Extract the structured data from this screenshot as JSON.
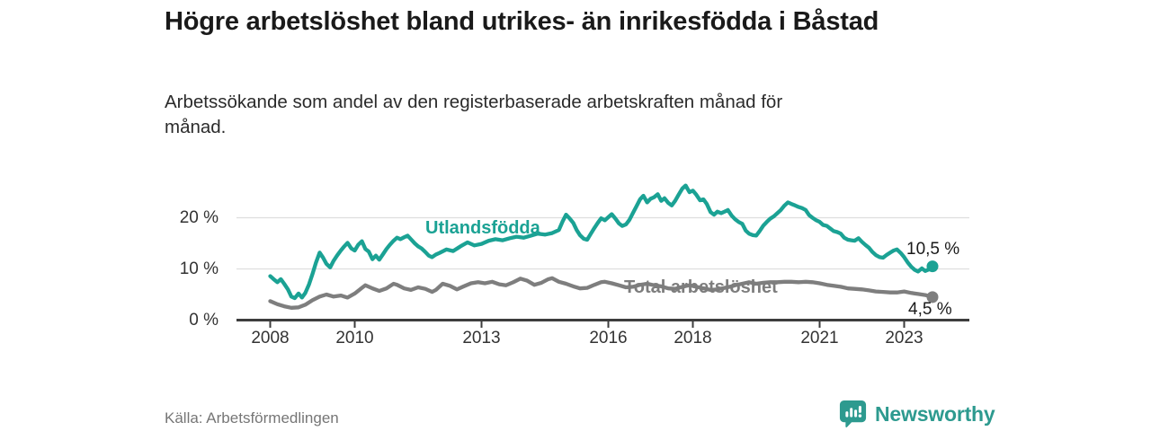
{
  "header": {
    "title": "Högre arbetslöshet bland utrikes- än inrikesfödda i Båstad",
    "subtitle": "Arbetssökande som andel av den registerbaserade arbetskraften månad för månad."
  },
  "footer": {
    "source": "Källa: Arbetsförmedlingen",
    "brand": "Newsworthy"
  },
  "colors": {
    "accent_teal": "#1ba294",
    "series_gray": "#7e7e7e",
    "gridline": "#dedede",
    "axis": "#3d3d3d",
    "title_text": "#1a1a1a",
    "tick_text": "#333333",
    "source_text": "#767676",
    "brand_teal": "#2d9a8f"
  },
  "chart_data": {
    "type": "line",
    "title": "Högre arbetslöshet bland utrikes- än inrikesfödda i Båstad",
    "subtitle": "Arbetssökande som andel av den registerbaserade arbetskraften månad för månad.",
    "unit": "%",
    "xlabel": "",
    "ylabel": "",
    "xlim": [
      2007.2,
      2024.5
    ],
    "ylim": [
      0,
      28.5
    ],
    "grid": "horizontal",
    "legend_position": "inline-labels",
    "x_ticks": [
      {
        "value": 2008,
        "label": "2008"
      },
      {
        "value": 2010,
        "label": "2010"
      },
      {
        "value": 2013,
        "label": "2013"
      },
      {
        "value": 2016,
        "label": "2016"
      },
      {
        "value": 2018,
        "label": "2018"
      },
      {
        "value": 2021,
        "label": "2021"
      },
      {
        "value": 2023,
        "label": "2023"
      }
    ],
    "y_ticks": [
      {
        "value": 0,
        "label": "0 %"
      },
      {
        "value": 10,
        "label": "10 %"
      },
      {
        "value": 20,
        "label": "20 %"
      }
    ],
    "series": [
      {
        "name": "Utlandsfödda",
        "color": "#1ba294",
        "end_value": 10.5,
        "end_value_label": "10,5 %",
        "points": [
          [
            2008.0,
            8.6
          ],
          [
            2008.08,
            8.0
          ],
          [
            2008.17,
            7.4
          ],
          [
            2008.25,
            8.0
          ],
          [
            2008.33,
            7.1
          ],
          [
            2008.42,
            6.0
          ],
          [
            2008.5,
            4.6
          ],
          [
            2008.58,
            4.3
          ],
          [
            2008.67,
            5.2
          ],
          [
            2008.75,
            4.4
          ],
          [
            2008.83,
            5.3
          ],
          [
            2008.92,
            7.0
          ],
          [
            2009.0,
            9.0
          ],
          [
            2009.08,
            11.2
          ],
          [
            2009.17,
            13.2
          ],
          [
            2009.25,
            12.2
          ],
          [
            2009.33,
            11.0
          ],
          [
            2009.42,
            10.3
          ],
          [
            2009.5,
            11.6
          ],
          [
            2009.58,
            12.6
          ],
          [
            2009.67,
            13.6
          ],
          [
            2009.75,
            14.4
          ],
          [
            2009.83,
            15.1
          ],
          [
            2009.92,
            14.0
          ],
          [
            2010.0,
            13.6
          ],
          [
            2010.08,
            14.7
          ],
          [
            2010.17,
            15.4
          ],
          [
            2010.25,
            13.9
          ],
          [
            2010.33,
            13.4
          ],
          [
            2010.42,
            11.9
          ],
          [
            2010.5,
            12.6
          ],
          [
            2010.58,
            11.8
          ],
          [
            2010.67,
            12.9
          ],
          [
            2010.75,
            13.9
          ],
          [
            2010.83,
            14.7
          ],
          [
            2010.92,
            15.5
          ],
          [
            2011.0,
            16.1
          ],
          [
            2011.08,
            15.8
          ],
          [
            2011.17,
            16.2
          ],
          [
            2011.25,
            16.5
          ],
          [
            2011.33,
            15.8
          ],
          [
            2011.42,
            15.0
          ],
          [
            2011.5,
            14.4
          ],
          [
            2011.58,
            14.0
          ],
          [
            2011.67,
            13.3
          ],
          [
            2011.75,
            12.6
          ],
          [
            2011.83,
            12.3
          ],
          [
            2011.92,
            12.8
          ],
          [
            2012.0,
            13.1
          ],
          [
            2012.17,
            13.8
          ],
          [
            2012.33,
            13.5
          ],
          [
            2012.5,
            14.4
          ],
          [
            2012.67,
            15.2
          ],
          [
            2012.83,
            14.6
          ],
          [
            2013.0,
            14.9
          ],
          [
            2013.17,
            15.5
          ],
          [
            2013.33,
            15.8
          ],
          [
            2013.5,
            15.6
          ],
          [
            2013.67,
            16.0
          ],
          [
            2013.83,
            16.3
          ],
          [
            2014.0,
            16.1
          ],
          [
            2014.17,
            16.5
          ],
          [
            2014.33,
            16.9
          ],
          [
            2014.5,
            16.7
          ],
          [
            2014.67,
            17.0
          ],
          [
            2014.83,
            17.6
          ],
          [
            2014.92,
            19.3
          ],
          [
            2015.0,
            20.6
          ],
          [
            2015.08,
            19.9
          ],
          [
            2015.17,
            19.0
          ],
          [
            2015.25,
            17.6
          ],
          [
            2015.33,
            16.6
          ],
          [
            2015.42,
            15.9
          ],
          [
            2015.5,
            15.7
          ],
          [
            2015.58,
            16.8
          ],
          [
            2015.67,
            18.0
          ],
          [
            2015.75,
            19.0
          ],
          [
            2015.83,
            19.9
          ],
          [
            2015.92,
            19.5
          ],
          [
            2016.0,
            20.1
          ],
          [
            2016.08,
            20.7
          ],
          [
            2016.17,
            19.8
          ],
          [
            2016.25,
            18.9
          ],
          [
            2016.33,
            18.4
          ],
          [
            2016.42,
            18.7
          ],
          [
            2016.5,
            19.6
          ],
          [
            2016.58,
            20.9
          ],
          [
            2016.67,
            22.3
          ],
          [
            2016.75,
            23.6
          ],
          [
            2016.83,
            24.3
          ],
          [
            2016.92,
            23.0
          ],
          [
            2017.0,
            23.7
          ],
          [
            2017.08,
            24.0
          ],
          [
            2017.17,
            24.6
          ],
          [
            2017.25,
            23.3
          ],
          [
            2017.33,
            23.8
          ],
          [
            2017.42,
            22.9
          ],
          [
            2017.5,
            22.4
          ],
          [
            2017.58,
            23.3
          ],
          [
            2017.67,
            24.6
          ],
          [
            2017.75,
            25.7
          ],
          [
            2017.83,
            26.3
          ],
          [
            2017.92,
            25.0
          ],
          [
            2018.0,
            25.3
          ],
          [
            2018.08,
            24.5
          ],
          [
            2018.17,
            23.4
          ],
          [
            2018.25,
            23.6
          ],
          [
            2018.33,
            22.7
          ],
          [
            2018.42,
            21.1
          ],
          [
            2018.5,
            20.6
          ],
          [
            2018.58,
            21.2
          ],
          [
            2018.67,
            20.9
          ],
          [
            2018.75,
            21.2
          ],
          [
            2018.83,
            21.5
          ],
          [
            2018.92,
            20.4
          ],
          [
            2019.0,
            19.7
          ],
          [
            2019.08,
            19.2
          ],
          [
            2019.17,
            18.8
          ],
          [
            2019.25,
            17.5
          ],
          [
            2019.33,
            16.9
          ],
          [
            2019.42,
            16.6
          ],
          [
            2019.5,
            16.5
          ],
          [
            2019.58,
            17.4
          ],
          [
            2019.67,
            18.5
          ],
          [
            2019.75,
            19.2
          ],
          [
            2019.83,
            19.8
          ],
          [
            2019.92,
            20.3
          ],
          [
            2020.0,
            20.9
          ],
          [
            2020.08,
            21.5
          ],
          [
            2020.17,
            22.4
          ],
          [
            2020.25,
            23.0
          ],
          [
            2020.33,
            22.7
          ],
          [
            2020.42,
            22.4
          ],
          [
            2020.5,
            22.1
          ],
          [
            2020.58,
            21.9
          ],
          [
            2020.67,
            21.5
          ],
          [
            2020.75,
            20.5
          ],
          [
            2020.83,
            20.0
          ],
          [
            2020.92,
            19.5
          ],
          [
            2021.0,
            19.2
          ],
          [
            2021.08,
            18.6
          ],
          [
            2021.17,
            18.4
          ],
          [
            2021.25,
            17.9
          ],
          [
            2021.33,
            17.4
          ],
          [
            2021.42,
            17.2
          ],
          [
            2021.5,
            16.9
          ],
          [
            2021.58,
            16.1
          ],
          [
            2021.67,
            15.7
          ],
          [
            2021.75,
            15.6
          ],
          [
            2021.83,
            15.5
          ],
          [
            2021.92,
            16.0
          ],
          [
            2022.0,
            15.3
          ],
          [
            2022.08,
            14.7
          ],
          [
            2022.17,
            14.1
          ],
          [
            2022.25,
            13.3
          ],
          [
            2022.33,
            12.7
          ],
          [
            2022.42,
            12.3
          ],
          [
            2022.5,
            12.2
          ],
          [
            2022.58,
            12.7
          ],
          [
            2022.67,
            13.2
          ],
          [
            2022.75,
            13.6
          ],
          [
            2022.83,
            13.8
          ],
          [
            2022.92,
            13.1
          ],
          [
            2023.0,
            12.3
          ],
          [
            2023.08,
            11.3
          ],
          [
            2023.17,
            10.4
          ],
          [
            2023.25,
            9.8
          ],
          [
            2023.33,
            9.5
          ],
          [
            2023.42,
            10.1
          ],
          [
            2023.5,
            9.6
          ],
          [
            2023.58,
            9.9
          ],
          [
            2023.67,
            10.5
          ]
        ]
      },
      {
        "name": "Total arbetslöshet",
        "color": "#7e7e7e",
        "end_value": 4.5,
        "end_value_label": "4,5 %",
        "points": [
          [
            2008.0,
            3.7
          ],
          [
            2008.17,
            3.1
          ],
          [
            2008.33,
            2.7
          ],
          [
            2008.5,
            2.4
          ],
          [
            2008.67,
            2.5
          ],
          [
            2008.83,
            3.0
          ],
          [
            2009.0,
            3.9
          ],
          [
            2009.17,
            4.6
          ],
          [
            2009.33,
            5.0
          ],
          [
            2009.5,
            4.6
          ],
          [
            2009.67,
            4.8
          ],
          [
            2009.83,
            4.4
          ],
          [
            2010.0,
            5.2
          ],
          [
            2010.17,
            6.3
          ],
          [
            2010.25,
            6.8
          ],
          [
            2010.42,
            6.2
          ],
          [
            2010.58,
            5.7
          ],
          [
            2010.75,
            6.2
          ],
          [
            2010.92,
            7.1
          ],
          [
            2011.0,
            6.9
          ],
          [
            2011.17,
            6.2
          ],
          [
            2011.33,
            5.9
          ],
          [
            2011.5,
            6.4
          ],
          [
            2011.67,
            6.1
          ],
          [
            2011.83,
            5.5
          ],
          [
            2011.92,
            5.9
          ],
          [
            2012.0,
            6.5
          ],
          [
            2012.08,
            7.1
          ],
          [
            2012.25,
            6.7
          ],
          [
            2012.42,
            6.0
          ],
          [
            2012.58,
            6.6
          ],
          [
            2012.75,
            7.2
          ],
          [
            2012.92,
            7.4
          ],
          [
            2013.08,
            7.2
          ],
          [
            2013.25,
            7.5
          ],
          [
            2013.42,
            7.0
          ],
          [
            2013.58,
            6.8
          ],
          [
            2013.75,
            7.4
          ],
          [
            2013.92,
            8.1
          ],
          [
            2014.08,
            7.7
          ],
          [
            2014.25,
            6.9
          ],
          [
            2014.42,
            7.3
          ],
          [
            2014.58,
            8.0
          ],
          [
            2014.67,
            8.2
          ],
          [
            2014.83,
            7.5
          ],
          [
            2015.0,
            7.1
          ],
          [
            2015.17,
            6.6
          ],
          [
            2015.33,
            6.2
          ],
          [
            2015.5,
            6.3
          ],
          [
            2015.67,
            6.9
          ],
          [
            2015.83,
            7.4
          ],
          [
            2015.92,
            7.5
          ],
          [
            2016.08,
            7.2
          ],
          [
            2016.25,
            6.8
          ],
          [
            2016.42,
            6.4
          ],
          [
            2016.58,
            6.5
          ],
          [
            2016.75,
            6.9
          ],
          [
            2016.92,
            7.1
          ],
          [
            2017.08,
            6.8
          ],
          [
            2017.25,
            6.6
          ],
          [
            2017.42,
            6.2
          ],
          [
            2017.58,
            6.1
          ],
          [
            2017.75,
            6.5
          ],
          [
            2017.92,
            6.8
          ],
          [
            2018.08,
            6.5
          ],
          [
            2018.25,
            6.2
          ],
          [
            2018.42,
            5.9
          ],
          [
            2018.58,
            6.0
          ],
          [
            2018.75,
            6.3
          ],
          [
            2018.92,
            6.6
          ],
          [
            2019.0,
            6.8
          ],
          [
            2019.17,
            7.1
          ],
          [
            2019.33,
            7.4
          ],
          [
            2019.5,
            7.1
          ],
          [
            2019.67,
            7.3
          ],
          [
            2019.83,
            7.4
          ],
          [
            2020.0,
            7.4
          ],
          [
            2020.17,
            7.5
          ],
          [
            2020.33,
            7.5
          ],
          [
            2020.5,
            7.4
          ],
          [
            2020.67,
            7.5
          ],
          [
            2020.83,
            7.4
          ],
          [
            2021.0,
            7.2
          ],
          [
            2021.17,
            6.9
          ],
          [
            2021.33,
            6.7
          ],
          [
            2021.5,
            6.5
          ],
          [
            2021.67,
            6.2
          ],
          [
            2021.83,
            6.1
          ],
          [
            2022.0,
            6.0
          ],
          [
            2022.17,
            5.8
          ],
          [
            2022.33,
            5.6
          ],
          [
            2022.5,
            5.5
          ],
          [
            2022.67,
            5.4
          ],
          [
            2022.83,
            5.4
          ],
          [
            2023.0,
            5.6
          ],
          [
            2023.17,
            5.3
          ],
          [
            2023.33,
            5.1
          ],
          [
            2023.5,
            4.9
          ],
          [
            2023.58,
            4.7
          ],
          [
            2023.67,
            4.5
          ]
        ]
      }
    ]
  }
}
